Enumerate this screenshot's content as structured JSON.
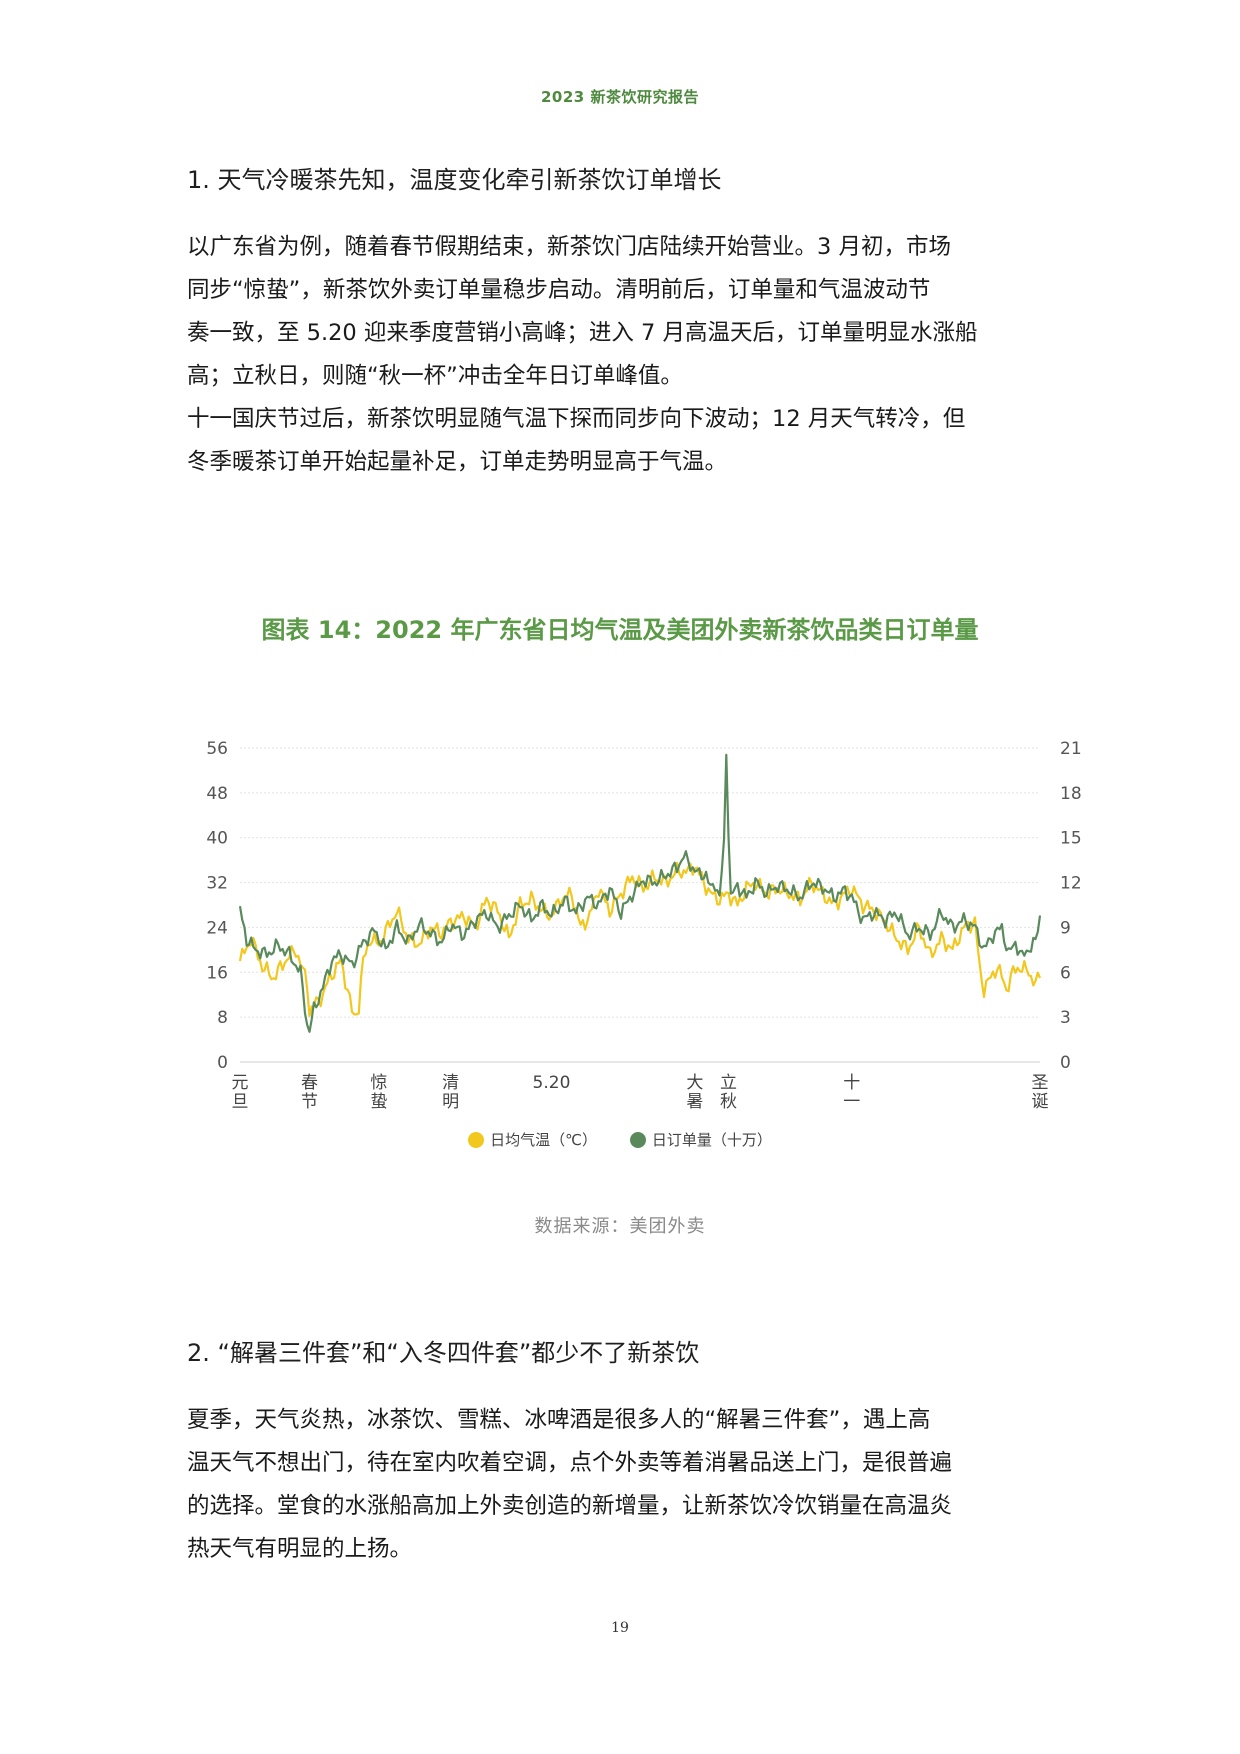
{
  "header": "2023 新茶饮研究报告",
  "section1": {
    "title": "1.  天气冷暖茶先知，温度变化牵引新茶饮订单增长",
    "lines": [
      "以广东省为例，随着春节假期结束，新茶饮门店陆续开始营业。3 月初，市场",
      "同步“惊蛰”，新茶饮外卖订单量稳步启动。清明前后，订单量和气温波动节",
      "奏一致，至 5.20 迎来季度营销小高峰；进入 7 月高温天后，订单量明显水涨船",
      "高；立秋日，则随“秋一杯”冲击全年日订单峰值。",
      "十一国庆节过后，新茶饮明显随气温下探而同步向下波动；12 月天气转冷，但",
      "冬季暖茶订单开始起量补足，订单走势明显高于气温。"
    ]
  },
  "chart_title": "图表 14：2022 年广东省日均气温及美团外卖新茶饮品类日订单量",
  "source": "数据来源：美团外卖",
  "section2": {
    "title": "2.  “解暑三件套”和“入冬四件套”都少不了新茶饮",
    "lines": [
      "夏季，天气炎热，冰茶饮、雪糕、冰啤酒是很多人的“解暑三件套”，遇上高",
      "温天气不想出门，待在室内吹着空调，点个外卖等着消暑品送上门，是很普遍",
      "的选择。堂食的水涨船高加上外卖创造的新增量，让新茶饮冷饮销量在高温炎",
      "热天气有明显的上扬。"
    ]
  },
  "page_number": "19",
  "chart_data": {
    "type": "line",
    "title": "图表 14：2022 年广东省日均气温及美团外卖新茶饮品类日订单量",
    "x_labels": [
      {
        "day": 0,
        "label": "元旦"
      },
      {
        "day": 31,
        "label": "春节"
      },
      {
        "day": 62,
        "label": "惊蛰"
      },
      {
        "day": 94,
        "label": "清明"
      },
      {
        "day": 139,
        "label": "5.20"
      },
      {
        "day": 203,
        "label": "大暑"
      },
      {
        "day": 218,
        "label": "立秋"
      },
      {
        "day": 273,
        "label": "十一"
      },
      {
        "day": 357,
        "label": "圣诞"
      }
    ],
    "y_left": {
      "ticks": [
        0,
        8,
        16,
        24,
        32,
        40,
        48,
        56
      ],
      "range": [
        0,
        56
      ]
    },
    "y_right": {
      "ticks": [
        0,
        3,
        6,
        9,
        12,
        15,
        18,
        21
      ],
      "range": [
        0,
        21
      ]
    },
    "xlim": [
      0,
      357
    ],
    "grid": true,
    "legend_position": "bottom",
    "series": [
      {
        "name": "日均气温（℃）",
        "axis": "left",
        "color": "#f2c81e",
        "keypoints": [
          [
            0,
            18
          ],
          [
            5,
            22
          ],
          [
            10,
            17
          ],
          [
            15,
            15
          ],
          [
            20,
            18
          ],
          [
            25,
            20
          ],
          [
            30,
            14
          ],
          [
            31,
            9
          ],
          [
            33,
            10
          ],
          [
            37,
            12
          ],
          [
            40,
            15
          ],
          [
            45,
            18
          ],
          [
            48,
            13
          ],
          [
            50,
            9
          ],
          [
            51,
            8
          ],
          [
            53,
            10
          ],
          [
            55,
            18
          ],
          [
            58,
            22
          ],
          [
            62,
            21
          ],
          [
            66,
            24
          ],
          [
            70,
            27
          ],
          [
            75,
            22
          ],
          [
            80,
            21
          ],
          [
            85,
            24
          ],
          [
            90,
            23
          ],
          [
            94,
            25
          ],
          [
            100,
            26
          ],
          [
            105,
            24
          ],
          [
            110,
            29
          ],
          [
            115,
            27
          ],
          [
            120,
            22
          ],
          [
            125,
            28
          ],
          [
            130,
            29
          ],
          [
            135,
            27
          ],
          [
            139,
            26
          ],
          [
            143,
            29
          ],
          [
            148,
            30
          ],
          [
            152,
            24
          ],
          [
            156,
            26
          ],
          [
            160,
            31
          ],
          [
            165,
            27
          ],
          [
            170,
            30
          ],
          [
            175,
            33
          ],
          [
            180,
            31
          ],
          [
            185,
            33
          ],
          [
            190,
            32
          ],
          [
            195,
            34
          ],
          [
            200,
            34
          ],
          [
            203,
            35
          ],
          [
            207,
            32
          ],
          [
            210,
            30
          ],
          [
            214,
            29
          ],
          [
            218,
            30
          ],
          [
            222,
            28
          ],
          [
            226,
            31
          ],
          [
            230,
            32
          ],
          [
            235,
            30
          ],
          [
            240,
            31
          ],
          [
            245,
            30
          ],
          [
            250,
            29
          ],
          [
            255,
            32
          ],
          [
            260,
            30
          ],
          [
            265,
            28
          ],
          [
            270,
            30
          ],
          [
            273,
            31
          ],
          [
            278,
            28
          ],
          [
            283,
            27
          ],
          [
            288,
            25
          ],
          [
            293,
            22
          ],
          [
            298,
            20
          ],
          [
            303,
            24
          ],
          [
            308,
            19
          ],
          [
            313,
            22
          ],
          [
            318,
            20
          ],
          [
            323,
            24
          ],
          [
            328,
            25
          ],
          [
            330,
            17
          ],
          [
            332,
            13
          ],
          [
            335,
            15
          ],
          [
            338,
            17
          ],
          [
            342,
            13
          ],
          [
            345,
            16
          ],
          [
            348,
            17
          ],
          [
            352,
            16
          ],
          [
            355,
            14
          ],
          [
            357,
            15
          ]
        ]
      },
      {
        "name": "日订单量（十万）",
        "axis": "right",
        "color": "#5a8a5c",
        "keypoints": [
          [
            0,
            10.2
          ],
          [
            3,
            8.2
          ],
          [
            7,
            7.5
          ],
          [
            12,
            7.2
          ],
          [
            17,
            7.8
          ],
          [
            22,
            7.2
          ],
          [
            27,
            6.0
          ],
          [
            30,
            2.5
          ],
          [
            31,
            2.1
          ],
          [
            33,
            3.5
          ],
          [
            37,
            5.0
          ],
          [
            41,
            6.8
          ],
          [
            45,
            7.2
          ],
          [
            50,
            6.5
          ],
          [
            55,
            8.0
          ],
          [
            60,
            8.8
          ],
          [
            65,
            7.5
          ],
          [
            70,
            9.0
          ],
          [
            75,
            8.0
          ],
          [
            80,
            9.2
          ],
          [
            85,
            8.6
          ],
          [
            90,
            8.0
          ],
          [
            94,
            9.2
          ],
          [
            100,
            8.5
          ],
          [
            105,
            9.5
          ],
          [
            110,
            10.0
          ],
          [
            115,
            9.0
          ],
          [
            120,
            9.8
          ],
          [
            125,
            10.5
          ],
          [
            130,
            9.5
          ],
          [
            135,
            10.5
          ],
          [
            139,
            9.8
          ],
          [
            145,
            10.8
          ],
          [
            150,
            10.0
          ],
          [
            155,
            11.0
          ],
          [
            160,
            10.5
          ],
          [
            165,
            11.6
          ],
          [
            170,
            10.0
          ],
          [
            175,
            11.2
          ],
          [
            180,
            12.2
          ],
          [
            185,
            12.0
          ],
          [
            190,
            12.5
          ],
          [
            195,
            13.0
          ],
          [
            198,
            13.8
          ],
          [
            202,
            13.0
          ],
          [
            205,
            12.5
          ],
          [
            208,
            12.6
          ],
          [
            210,
            11.5
          ],
          [
            212,
            12.0
          ],
          [
            214,
            11.0
          ],
          [
            216,
            14.5
          ],
          [
            217,
            20.8
          ],
          [
            218,
            15.5
          ],
          [
            219,
            11.0
          ],
          [
            222,
            11.8
          ],
          [
            226,
            11.0
          ],
          [
            230,
            12.0
          ],
          [
            235,
            11.3
          ],
          [
            240,
            11.8
          ],
          [
            245,
            11.5
          ],
          [
            250,
            11.0
          ],
          [
            255,
            12.0
          ],
          [
            260,
            11.7
          ],
          [
            265,
            11.0
          ],
          [
            270,
            11.5
          ],
          [
            273,
            11.0
          ],
          [
            278,
            9.5
          ],
          [
            283,
            10.0
          ],
          [
            288,
            9.5
          ],
          [
            293,
            10.0
          ],
          [
            298,
            8.5
          ],
          [
            303,
            9.0
          ],
          [
            308,
            8.5
          ],
          [
            313,
            10.0
          ],
          [
            318,
            9.0
          ],
          [
            323,
            9.5
          ],
          [
            328,
            9.0
          ],
          [
            332,
            7.5
          ],
          [
            336,
            8.5
          ],
          [
            340,
            9.0
          ],
          [
            343,
            7.2
          ],
          [
            346,
            8.0
          ],
          [
            349,
            7.0
          ],
          [
            352,
            7.6
          ],
          [
            355,
            8.0
          ],
          [
            357,
            9.8
          ]
        ]
      }
    ]
  }
}
